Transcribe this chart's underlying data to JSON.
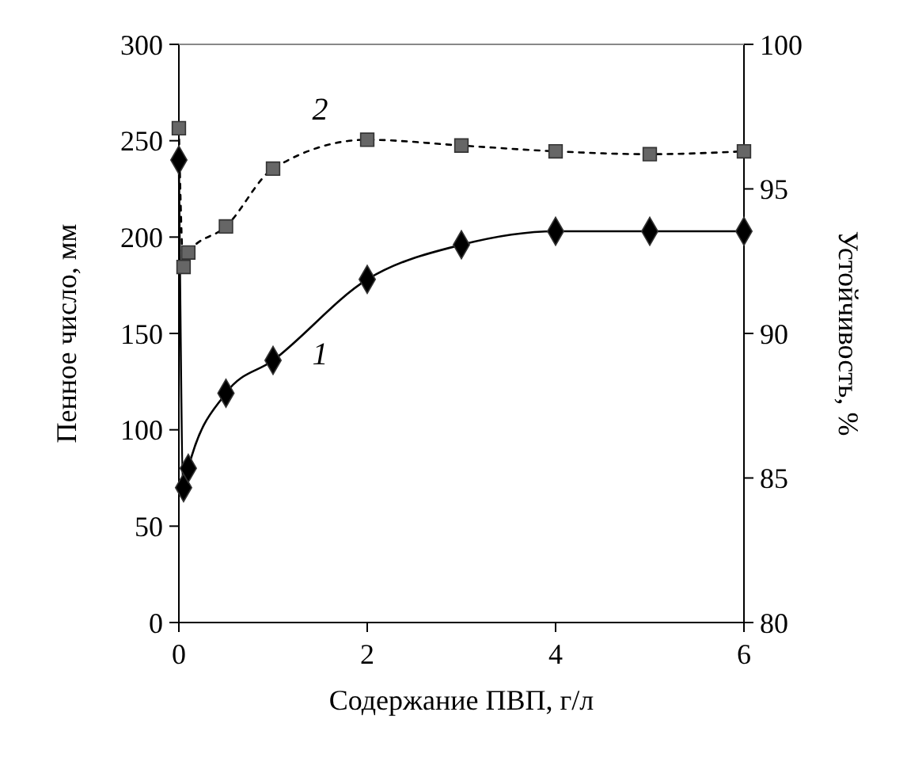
{
  "chart_data": {
    "type": "line",
    "xlabel": "Содержание ПВП, г/л",
    "ylabel": "Пенное число, мм",
    "y2label": "Устойчивость, %",
    "x": [
      0,
      0.05,
      0.1,
      0.5,
      1,
      2,
      3,
      4,
      5,
      6
    ],
    "series": [
      {
        "name": "1",
        "color": "#000000",
        "marker": "diamond",
        "line_style": "solid",
        "values": [
          240,
          70,
          80,
          119,
          136,
          178,
          196,
          203,
          203,
          203
        ]
      },
      {
        "name": "2",
        "color": "#666666",
        "marker": "square",
        "line_style": "dotted",
        "axis": "y2",
        "values": [
          97.1,
          92.3,
          92.8,
          93.7,
          95.7,
          96.7,
          96.5,
          96.3,
          96.2,
          96.3
        ]
      }
    ],
    "xlim": [
      0,
      6
    ],
    "xticks": [
      0,
      2,
      4,
      6
    ],
    "ylim": [
      0,
      300
    ],
    "yticks": [
      0,
      50,
      100,
      150,
      200,
      250,
      300
    ],
    "y2lim": [
      80,
      100
    ],
    "y2ticks": [
      80,
      85,
      90,
      95,
      100
    ],
    "grid": false
  }
}
